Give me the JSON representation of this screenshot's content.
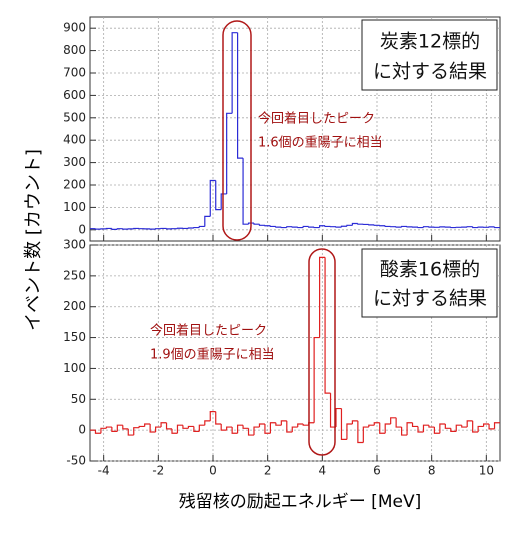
{
  "axis_labels": {
    "y": "イベント数 [カウント]",
    "x": "残留核の励起エネルギー [MeV]"
  },
  "chart_data": [
    {
      "type": "histogram",
      "color": "#2b2bd6",
      "grid": true,
      "box": [
        "炭素12標的",
        "に対する結果"
      ],
      "note": [
        "今回着目したピーク",
        "1.6個の重陽子に相当"
      ],
      "xlim": [
        -4.5,
        10.5
      ],
      "xticks": [
        -4,
        -2,
        0,
        2,
        4,
        6,
        8,
        10
      ],
      "ylim": [
        -50,
        950
      ],
      "yticks": [
        0,
        100,
        200,
        300,
        400,
        500,
        600,
        700,
        800,
        900
      ],
      "bins": [
        -4.5,
        -4.3,
        -4.1,
        -3.9,
        -3.7,
        -3.5,
        -3.3,
        -3.1,
        -2.9,
        -2.7,
        -2.5,
        -2.3,
        -2.1,
        -1.9,
        -1.7,
        -1.5,
        -1.3,
        -1.1,
        -0.9,
        -0.7,
        -0.5,
        -0.3,
        -0.1,
        0.1,
        0.3,
        0.5,
        0.7,
        0.9,
        1.1,
        1.3,
        1.5,
        1.7,
        1.9,
        2.1,
        2.3,
        2.5,
        2.7,
        2.9,
        3.1,
        3.3,
        3.5,
        3.7,
        3.9,
        4.1,
        4.3,
        4.5,
        4.7,
        4.9,
        5.1,
        5.3,
        5.5,
        5.7,
        5.9,
        6.1,
        6.3,
        6.5,
        6.7,
        6.9,
        7.1,
        7.3,
        7.5,
        7.7,
        7.9,
        8.1,
        8.3,
        8.5,
        8.7,
        8.9,
        9.1,
        9.3,
        9.5,
        9.7,
        9.9,
        10.1,
        10.3,
        10.5
      ],
      "values": [
        5,
        3,
        4,
        6,
        2,
        5,
        3,
        4,
        6,
        5,
        4,
        3,
        5,
        6,
        4,
        5,
        7,
        6,
        8,
        10,
        15,
        60,
        220,
        90,
        160,
        520,
        880,
        320,
        25,
        30,
        25,
        20,
        18,
        15,
        12,
        10,
        14,
        12,
        10,
        15,
        12,
        10,
        18,
        15,
        14,
        12,
        16,
        20,
        28,
        25,
        24,
        22,
        20,
        18,
        15,
        14,
        12,
        15,
        13,
        12,
        10,
        14,
        12,
        11,
        13,
        12,
        10,
        11,
        12,
        14,
        10,
        12,
        11,
        13,
        10
      ]
    },
    {
      "type": "histogram",
      "color": "#e02020",
      "grid": true,
      "box": [
        "酸素16標的",
        "に対する結果"
      ],
      "note": [
        "今回着目したピーク",
        "1.9個の重陽子に相当"
      ],
      "xlim": [
        -4.5,
        10.5
      ],
      "xticks": [
        -4,
        -2,
        0,
        2,
        4,
        6,
        8,
        10
      ],
      "ylim": [
        -50,
        300
      ],
      "yticks": [
        -50,
        0,
        50,
        100,
        150,
        200,
        250,
        300
      ],
      "bins": [
        -4.5,
        -4.3,
        -4.1,
        -3.9,
        -3.7,
        -3.5,
        -3.3,
        -3.1,
        -2.9,
        -2.7,
        -2.5,
        -2.3,
        -2.1,
        -1.9,
        -1.7,
        -1.5,
        -1.3,
        -1.1,
        -0.9,
        -0.7,
        -0.5,
        -0.3,
        -0.1,
        0.1,
        0.3,
        0.5,
        0.7,
        0.9,
        1.1,
        1.3,
        1.5,
        1.7,
        1.9,
        2.1,
        2.3,
        2.5,
        2.7,
        2.9,
        3.1,
        3.3,
        3.5,
        3.7,
        3.9,
        4.1,
        4.3,
        4.5,
        4.7,
        4.9,
        5.1,
        5.3,
        5.5,
        5.7,
        5.9,
        6.1,
        6.3,
        6.5,
        6.7,
        6.9,
        7.1,
        7.3,
        7.5,
        7.7,
        7.9,
        8.1,
        8.3,
        8.5,
        8.7,
        8.9,
        9.1,
        9.3,
        9.5,
        9.7,
        9.9,
        10.1,
        10.3,
        10.5
      ],
      "values": [
        0,
        -5,
        3,
        5,
        -2,
        8,
        2,
        -8,
        4,
        6,
        10,
        -3,
        5,
        12,
        2,
        -5,
        8,
        3,
        6,
        -2,
        8,
        15,
        30,
        10,
        0,
        5,
        -5,
        8,
        3,
        -8,
        5,
        10,
        -5,
        12,
        8,
        15,
        -3,
        5,
        10,
        8,
        12,
        150,
        280,
        60,
        5,
        35,
        -15,
        10,
        15,
        -20,
        5,
        8,
        12,
        -5,
        10,
        20,
        5,
        -8,
        12,
        6,
        -3,
        8,
        5,
        -5,
        10,
        3,
        -2,
        8,
        5,
        15,
        -3,
        6,
        10,
        2,
        12
      ]
    }
  ]
}
